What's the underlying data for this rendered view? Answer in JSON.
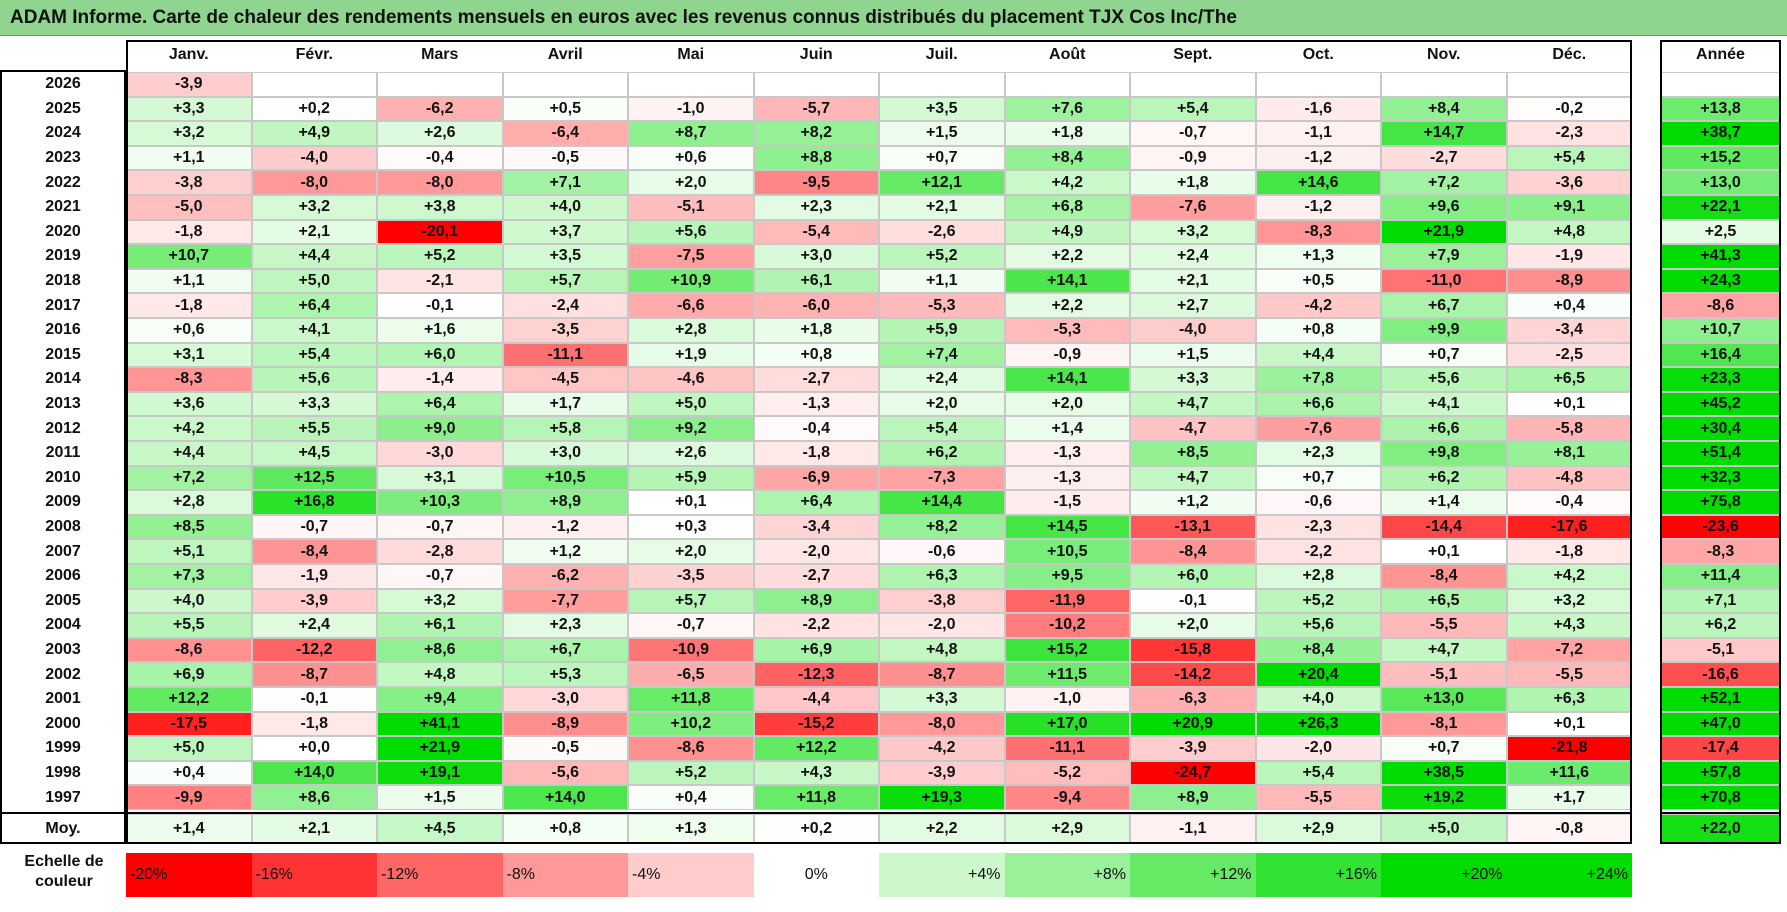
{
  "title": "ADAM Informe. Carte de chaleur des rendements mensuels en euros avec les revenus connus distribués du placement TJX Cos Inc/The",
  "chart_data": {
    "type": "heatmap",
    "title": "ADAM Informe. Carte de chaleur des rendements mensuels en euros avec les revenus connus distribués du placement TJX Cos Inc/The",
    "months": [
      "Janv.",
      "Févr.",
      "Mars",
      "Avril",
      "Mai",
      "Juin",
      "Juil.",
      "Août",
      "Sept.",
      "Oct.",
      "Nov.",
      "Déc."
    ],
    "annual_label": "Année",
    "rows": [
      {
        "year": "2026",
        "values": [
          "-3,9",
          "",
          "",
          "",
          "",
          "",
          "",
          "",
          "",
          "",
          "",
          ""
        ],
        "annual": ""
      },
      {
        "year": "2025",
        "values": [
          "+3,3",
          "+0,2",
          "-6,2",
          "+0,5",
          "-1,0",
          "-5,7",
          "+3,5",
          "+7,6",
          "+5,4",
          "-1,6",
          "+8,4",
          "-0,2"
        ],
        "annual": "+13,8"
      },
      {
        "year": "2024",
        "values": [
          "+3,2",
          "+4,9",
          "+2,6",
          "-6,4",
          "+8,7",
          "+8,2",
          "+1,5",
          "+1,8",
          "-0,7",
          "-1,1",
          "+14,7",
          "-2,3"
        ],
        "annual": "+38,7"
      },
      {
        "year": "2023",
        "values": [
          "+1,1",
          "-4,0",
          "-0,4",
          "-0,5",
          "+0,6",
          "+8,8",
          "+0,7",
          "+8,4",
          "-0,9",
          "-1,2",
          "-2,7",
          "+5,4"
        ],
        "annual": "+15,2"
      },
      {
        "year": "2022",
        "values": [
          "-3,8",
          "-8,0",
          "-8,0",
          "+7,1",
          "+2,0",
          "-9,5",
          "+12,1",
          "+4,2",
          "+1,8",
          "+14,6",
          "+7,2",
          "-3,6"
        ],
        "annual": "+13,0"
      },
      {
        "year": "2021",
        "values": [
          "-5,0",
          "+3,2",
          "+3,8",
          "+4,0",
          "-5,1",
          "+2,3",
          "+2,1",
          "+6,8",
          "-7,6",
          "-1,2",
          "+9,6",
          "+9,1"
        ],
        "annual": "+22,1"
      },
      {
        "year": "2020",
        "values": [
          "-1,8",
          "+2,1",
          "-20,1",
          "+3,7",
          "+5,6",
          "-5,4",
          "-2,6",
          "+4,9",
          "+3,2",
          "-8,3",
          "+21,9",
          "+4,8"
        ],
        "annual": "+2,5"
      },
      {
        "year": "2019",
        "values": [
          "+10,7",
          "+4,4",
          "+5,2",
          "+3,5",
          "-7,5",
          "+3,0",
          "+5,2",
          "+2,2",
          "+2,4",
          "+1,3",
          "+7,9",
          "-1,9"
        ],
        "annual": "+41,3"
      },
      {
        "year": "2018",
        "values": [
          "+1,1",
          "+5,0",
          "-2,1",
          "+5,7",
          "+10,9",
          "+6,1",
          "+1,1",
          "+14,1",
          "+2,1",
          "+0,5",
          "-11,0",
          "-8,9"
        ],
        "annual": "+24,3"
      },
      {
        "year": "2017",
        "values": [
          "-1,8",
          "+6,4",
          "-0,1",
          "-2,4",
          "-6,6",
          "-6,0",
          "-5,3",
          "+2,2",
          "+2,7",
          "-4,2",
          "+6,7",
          "+0,4"
        ],
        "annual": "-8,6"
      },
      {
        "year": "2016",
        "values": [
          "+0,6",
          "+4,1",
          "+1,6",
          "-3,5",
          "+2,8",
          "+1,8",
          "+5,9",
          "-5,3",
          "-4,0",
          "+0,8",
          "+9,9",
          "-3,4"
        ],
        "annual": "+10,7"
      },
      {
        "year": "2015",
        "values": [
          "+3,1",
          "+5,4",
          "+6,0",
          "-11,1",
          "+1,9",
          "+0,8",
          "+7,4",
          "-0,9",
          "+1,5",
          "+4,4",
          "+0,7",
          "-2,5"
        ],
        "annual": "+16,4"
      },
      {
        "year": "2014",
        "values": [
          "-8,3",
          "+5,6",
          "-1,4",
          "-4,5",
          "-4,6",
          "-2,7",
          "+2,4",
          "+14,1",
          "+3,3",
          "+7,8",
          "+5,6",
          "+6,5"
        ],
        "annual": "+23,3"
      },
      {
        "year": "2013",
        "values": [
          "+3,6",
          "+3,3",
          "+6,4",
          "+1,7",
          "+5,0",
          "-1,3",
          "+2,0",
          "+2,0",
          "+4,7",
          "+6,6",
          "+4,1",
          "+0,1"
        ],
        "annual": "+45,2"
      },
      {
        "year": "2012",
        "values": [
          "+4,2",
          "+5,5",
          "+9,0",
          "+5,8",
          "+9,2",
          "-0,4",
          "+5,4",
          "+1,4",
          "-4,7",
          "-7,6",
          "+6,6",
          "-5,8"
        ],
        "annual": "+30,4"
      },
      {
        "year": "2011",
        "values": [
          "+4,4",
          "+4,5",
          "-3,0",
          "+3,0",
          "+2,6",
          "-1,8",
          "+6,2",
          "-1,3",
          "+8,5",
          "+2,3",
          "+9,8",
          "+8,1"
        ],
        "annual": "+51,4"
      },
      {
        "year": "2010",
        "values": [
          "+7,2",
          "+12,5",
          "+3,1",
          "+10,5",
          "+5,9",
          "-6,9",
          "-7,3",
          "-1,3",
          "+4,7",
          "+0,7",
          "+6,2",
          "-4,8"
        ],
        "annual": "+32,3"
      },
      {
        "year": "2009",
        "values": [
          "+2,8",
          "+16,8",
          "+10,3",
          "+8,9",
          "+0,1",
          "+6,4",
          "+14,4",
          "-1,5",
          "+1,2",
          "-0,6",
          "+1,4",
          "-0,4"
        ],
        "annual": "+75,8"
      },
      {
        "year": "2008",
        "values": [
          "+8,5",
          "-0,7",
          "-0,7",
          "-1,2",
          "+0,3",
          "-3,4",
          "+8,2",
          "+14,5",
          "-13,1",
          "-2,3",
          "-14,4",
          "-17,6"
        ],
        "annual": "-23,6"
      },
      {
        "year": "2007",
        "values": [
          "+5,1",
          "-8,4",
          "-2,8",
          "+1,2",
          "+2,0",
          "-2,0",
          "-0,6",
          "+10,5",
          "-8,4",
          "-2,2",
          "+0,1",
          "-1,8"
        ],
        "annual": "-8,3"
      },
      {
        "year": "2006",
        "values": [
          "+7,3",
          "-1,9",
          "-0,7",
          "-6,2",
          "-3,5",
          "-2,7",
          "+6,3",
          "+9,5",
          "+6,0",
          "+2,8",
          "-8,4",
          "+4,2"
        ],
        "annual": "+11,4"
      },
      {
        "year": "2005",
        "values": [
          "+4,0",
          "-3,9",
          "+3,2",
          "-7,7",
          "+5,7",
          "+8,9",
          "-3,8",
          "-11,9",
          "-0,1",
          "+5,2",
          "+6,5",
          "+3,2"
        ],
        "annual": "+7,1"
      },
      {
        "year": "2004",
        "values": [
          "+5,5",
          "+2,4",
          "+6,1",
          "+2,3",
          "-0,7",
          "-2,2",
          "-2,0",
          "-10,2",
          "+2,0",
          "+5,6",
          "-5,5",
          "+4,3"
        ],
        "annual": "+6,2"
      },
      {
        "year": "2003",
        "values": [
          "-8,6",
          "-12,2",
          "+8,6",
          "+6,7",
          "-10,9",
          "+6,9",
          "+4,8",
          "+15,2",
          "-15,8",
          "+8,4",
          "+4,7",
          "-7,2"
        ],
        "annual": "-5,1"
      },
      {
        "year": "2002",
        "values": [
          "+6,9",
          "-8,7",
          "+4,8",
          "+5,3",
          "-6,5",
          "-12,3",
          "-8,7",
          "+11,5",
          "-14,2",
          "+20,4",
          "-5,1",
          "-5,5"
        ],
        "annual": "-16,6"
      },
      {
        "year": "2001",
        "values": [
          "+12,2",
          "-0,1",
          "+9,4",
          "-3,0",
          "+11,8",
          "-4,4",
          "+3,3",
          "-1,0",
          "-6,3",
          "+4,0",
          "+13,0",
          "+6,3"
        ],
        "annual": "+52,1"
      },
      {
        "year": "2000",
        "values": [
          "-17,5",
          "-1,8",
          "+41,1",
          "-8,9",
          "+10,2",
          "-15,2",
          "-8,0",
          "+17,0",
          "+20,9",
          "+26,3",
          "-8,1",
          "+0,1"
        ],
        "annual": "+47,0"
      },
      {
        "year": "1999",
        "values": [
          "+5,0",
          "+0,0",
          "+21,9",
          "-0,5",
          "-8,6",
          "+12,2",
          "-4,2",
          "-11,1",
          "-3,9",
          "-2,0",
          "+0,7",
          "-21,8"
        ],
        "annual": "-17,4"
      },
      {
        "year": "1998",
        "values": [
          "+0,4",
          "+14,0",
          "+19,1",
          "-5,6",
          "+5,2",
          "+4,3",
          "-3,9",
          "-5,2",
          "-24,7",
          "+5,4",
          "+38,5",
          "+11,6"
        ],
        "annual": "+57,8"
      },
      {
        "year": "1997",
        "values": [
          "-9,9",
          "+8,6",
          "+1,5",
          "+14,0",
          "+0,4",
          "+11,8",
          "+19,3",
          "-9,4",
          "+8,9",
          "-5,5",
          "+19,2",
          "+1,7"
        ],
        "annual": "+70,8"
      }
    ],
    "average": {
      "label": "Moy.",
      "values": [
        "+1,4",
        "+2,1",
        "+4,5",
        "+0,8",
        "+1,3",
        "+0,2",
        "+2,2",
        "+2,9",
        "-1,1",
        "+2,9",
        "+5,0",
        "-0,8"
      ],
      "annual": "+22,0"
    },
    "legend": {
      "label": "Echelle de couleur",
      "steps": [
        "-20%",
        "-16%",
        "-12%",
        "-8%",
        "-4%",
        "0%",
        "+4%",
        "+8%",
        "+12%",
        "+16%",
        "+20%",
        "+24%"
      ]
    }
  }
}
